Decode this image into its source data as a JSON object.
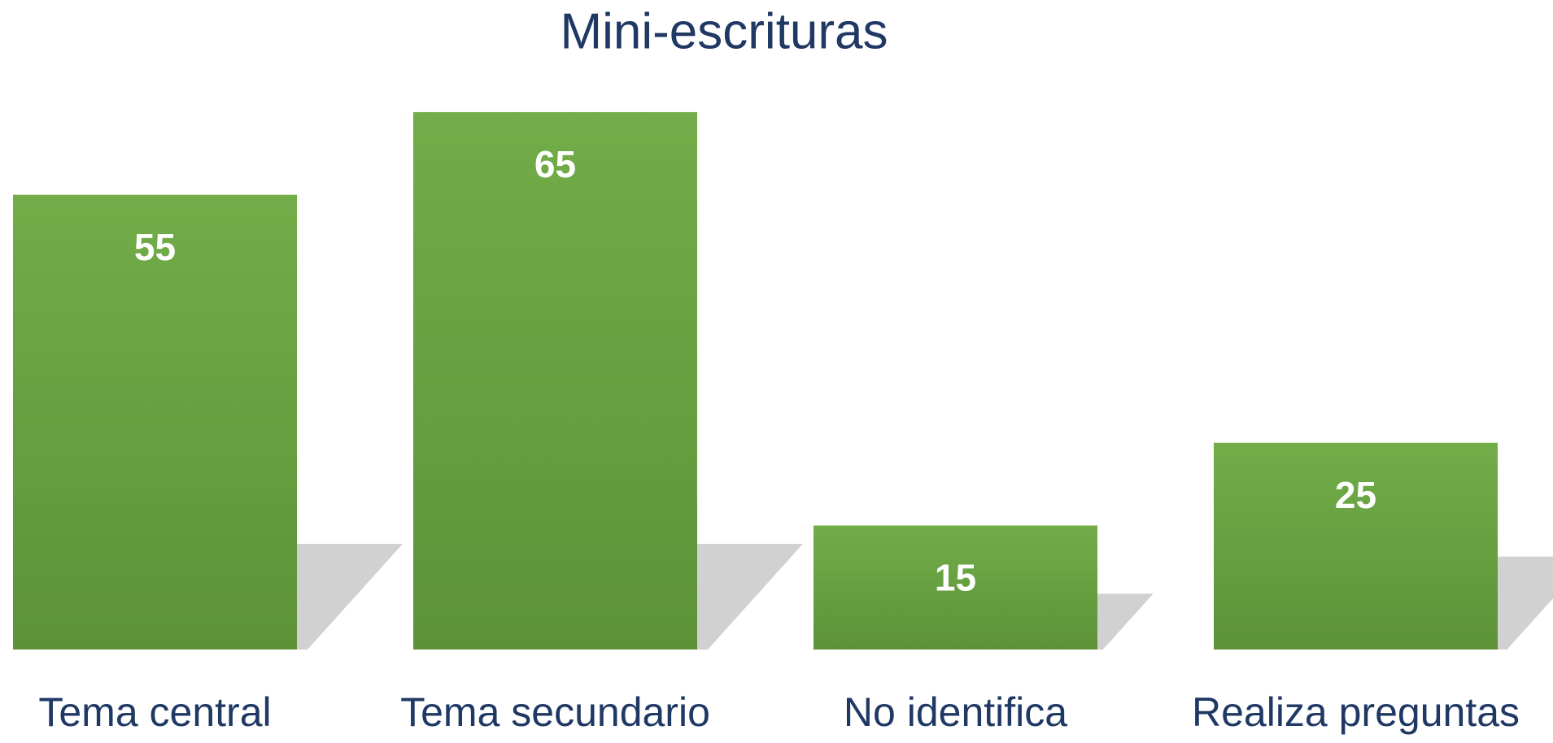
{
  "chart_data": {
    "type": "bar",
    "title": "Mini-escrituras",
    "categories": [
      "Tema central",
      "Tema secundario",
      "No identifica",
      "Realiza preguntas"
    ],
    "values": [
      55,
      65,
      15,
      25
    ],
    "color": "#69a042"
  }
}
